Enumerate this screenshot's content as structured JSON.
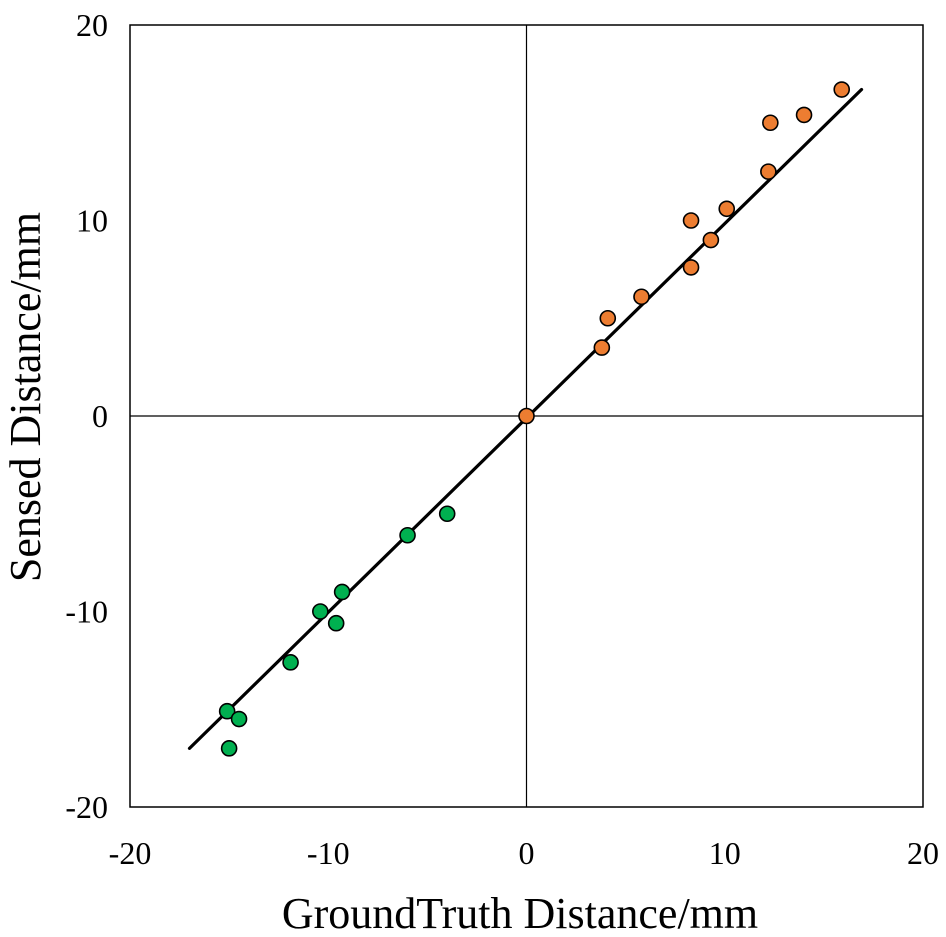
{
  "chart_data": {
    "type": "scatter",
    "title": "",
    "xlabel": "GroundTruth Distance/mm",
    "ylabel": "Sensed Distance/mm",
    "xlim": [
      -20,
      20
    ],
    "ylim": [
      -20,
      20
    ],
    "xticks": [
      -20,
      -10,
      0,
      10,
      20
    ],
    "yticks": [
      -20,
      -10,
      0,
      10,
      20
    ],
    "grid": false,
    "zero_lines": true,
    "legend": "none",
    "series": [
      {
        "color": "#00b050",
        "points": [
          [
            -15.1,
            -15.1
          ],
          [
            -14.5,
            -15.5
          ],
          [
            -15.0,
            -17.0
          ],
          [
            -11.9,
            -12.6
          ],
          [
            -10.4,
            -10.0
          ],
          [
            -9.6,
            -10.6
          ],
          [
            -9.3,
            -9.0
          ],
          [
            -6.0,
            -6.1
          ],
          [
            -4.0,
            -5.0
          ]
        ]
      },
      {
        "color": "#ed7d31",
        "points": [
          [
            0,
            0
          ],
          [
            3.8,
            3.5
          ],
          [
            4.1,
            5.0
          ],
          [
            5.8,
            6.1
          ],
          [
            8.3,
            7.6
          ],
          [
            8.3,
            10.0
          ],
          [
            9.3,
            9.0
          ],
          [
            10.1,
            10.6
          ],
          [
            12.2,
            12.5
          ],
          [
            12.3,
            15.0
          ],
          [
            14.0,
            15.4
          ],
          [
            15.9,
            16.7
          ]
        ]
      }
    ],
    "trendline": {
      "x": [
        -17.0,
        16.9
      ],
      "y": [
        -17.0,
        16.7
      ],
      "color": "#000000"
    }
  }
}
